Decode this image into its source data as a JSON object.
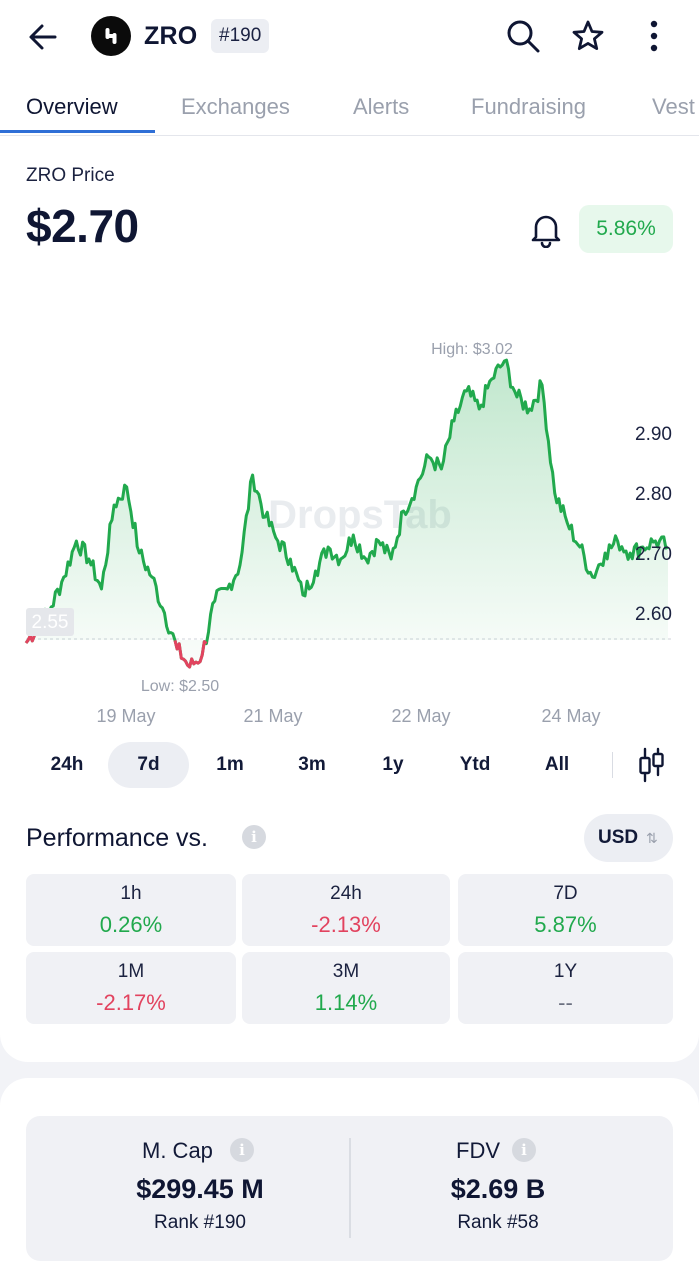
{
  "header": {
    "coin_symbol": "ZRO",
    "rank_badge": "#190",
    "icons": [
      "back-arrow-icon",
      "search-icon",
      "star-icon",
      "more-vertical-icon"
    ]
  },
  "tabs": [
    {
      "label": "Overview",
      "active": true
    },
    {
      "label": "Exchanges",
      "active": false
    },
    {
      "label": "Alerts",
      "active": false
    },
    {
      "label": "Fundraising",
      "active": false
    },
    {
      "label": "Vest",
      "active": false
    }
  ],
  "price": {
    "label": "ZRO Price",
    "value": "$2.70",
    "change": "5.86%",
    "change_color": "#21a94d"
  },
  "chart_data": {
    "type": "line",
    "y_ticks": [
      "2.90",
      "2.80",
      "2.70",
      "2.60"
    ],
    "x_ticks": [
      "19 May",
      "21 May",
      "22 May",
      "24 May"
    ],
    "start_label": "2.55",
    "high_label": "High: $3.02",
    "low_label": "Low: $2.50",
    "watermark": "DropsTab",
    "ylim": [
      2.5,
      3.02
    ],
    "series": [
      {
        "x": [
          "18 May",
          "18 May",
          "18 May",
          "19 May",
          "19 May",
          "19 May",
          "19 May",
          "19 May",
          "19 May",
          "19 May",
          "19 May",
          "20 May",
          "20 May",
          "20 May",
          "20 May",
          "20 May",
          "20 May",
          "20 May",
          "20 May",
          "20 May",
          "20 May",
          "21 May",
          "21 May",
          "21 May",
          "21 May",
          "21 May",
          "21 May",
          "21 May",
          "22 May",
          "22 May",
          "22 May",
          "22 May",
          "22 May",
          "22 May",
          "23 May",
          "23 May",
          "23 May",
          "23 May",
          "23 May",
          "23 May",
          "23 May",
          "23 May",
          "24 May",
          "24 May",
          "24 May",
          "24 May",
          "24 May",
          "24 May",
          "25 May",
          "25 May",
          "25 May",
          "25 May"
        ],
        "values": [
          2.55,
          2.58,
          2.61,
          2.66,
          2.72,
          2.69,
          2.64,
          2.78,
          2.81,
          2.7,
          2.66,
          2.6,
          2.54,
          2.51,
          2.53,
          2.62,
          2.64,
          2.68,
          2.83,
          2.76,
          2.72,
          2.69,
          2.63,
          2.67,
          2.71,
          2.69,
          2.73,
          2.69,
          2.72,
          2.69,
          2.77,
          2.81,
          2.86,
          2.84,
          2.92,
          2.97,
          2.94,
          2.99,
          3.02,
          2.96,
          2.94,
          2.98,
          2.8,
          2.75,
          2.71,
          2.66,
          2.7,
          2.72,
          2.7,
          2.71,
          2.72,
          2.71
        ],
        "color": "#21a94d"
      }
    ],
    "low_color": "#e2435f"
  },
  "periods": [
    {
      "label": "24h",
      "active": false
    },
    {
      "label": "7d",
      "active": true
    },
    {
      "label": "1m",
      "active": false
    },
    {
      "label": "3m",
      "active": false
    },
    {
      "label": "1y",
      "active": false
    },
    {
      "label": "Ytd",
      "active": false
    },
    {
      "label": "All",
      "active": false
    }
  ],
  "performance": {
    "title": "Performance vs.",
    "currency": "USD",
    "cells": [
      {
        "label": "1h",
        "value": "0.26%",
        "tone": "pos"
      },
      {
        "label": "24h",
        "value": "-2.13%",
        "tone": "neg"
      },
      {
        "label": "7D",
        "value": "5.87%",
        "tone": "pos"
      },
      {
        "label": "1M",
        "value": "-2.17%",
        "tone": "neg"
      },
      {
        "label": "3M",
        "value": "1.14%",
        "tone": "pos"
      },
      {
        "label": "1Y",
        "value": "--",
        "tone": "nil"
      }
    ]
  },
  "stats": {
    "mcap_label": "M. Cap",
    "mcap_value": "$299.45 M",
    "mcap_rank": "Rank #190",
    "fdv_label": "FDV",
    "fdv_value": "$2.69 B",
    "fdv_rank": "Rank #58"
  }
}
